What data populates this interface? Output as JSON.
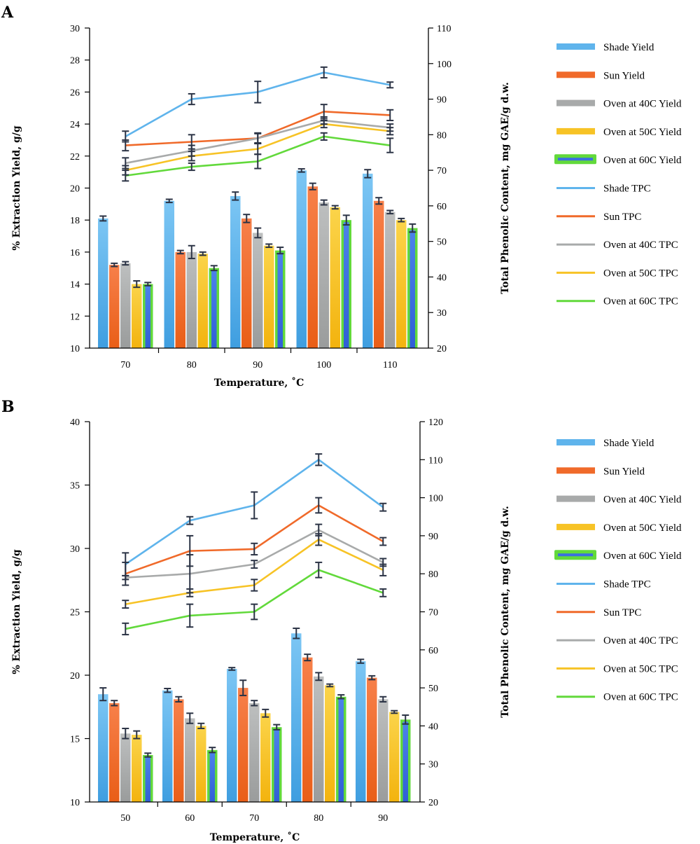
{
  "colors": {
    "shade": "#5fb4ec",
    "sun": "#f06a2a",
    "oven40": "#a8aaaa",
    "oven50": "#f7c326",
    "oven60_outline": "#62d93b",
    "oven60_fill": "#3b6fe0",
    "error_bar": "#2b3345"
  },
  "chart_data": [
    {
      "panel": "A",
      "type": "bar",
      "xlabel": "Temperature, ˚C",
      "ylabel": "% Extraction Yield, g/g",
      "y2label": "Total Phenolic Content, mg GAE/g d.w.",
      "categories": [
        "70",
        "80",
        "90",
        "100",
        "110"
      ],
      "ylim": [
        10,
        30
      ],
      "yticks": [
        10,
        12,
        14,
        16,
        18,
        20,
        22,
        24,
        26,
        28,
        30
      ],
      "y2lim": [
        20,
        110
      ],
      "y2ticks": [
        20,
        30,
        40,
        50,
        60,
        70,
        80,
        90,
        100,
        110
      ],
      "legend_position": "right",
      "bar_series": [
        {
          "name": "Shade Yield",
          "values": [
            18.1,
            19.2,
            19.5,
            21.1,
            20.9
          ],
          "errors": [
            0.15,
            0.1,
            0.25,
            0.1,
            0.25
          ]
        },
        {
          "name": "Sun Yield",
          "values": [
            15.2,
            16.0,
            18.1,
            20.1,
            19.2
          ],
          "errors": [
            0.1,
            0.1,
            0.25,
            0.2,
            0.2
          ]
        },
        {
          "name": "Oven at 40C Yield",
          "values": [
            15.3,
            16.0,
            17.2,
            19.1,
            18.5
          ],
          "errors": [
            0.1,
            0.4,
            0.3,
            0.15,
            0.1
          ]
        },
        {
          "name": "Oven at 50C Yield",
          "values": [
            14.0,
            15.9,
            16.4,
            18.8,
            18.0
          ],
          "errors": [
            0.2,
            0.1,
            0.1,
            0.1,
            0.1
          ]
        },
        {
          "name": "Oven at 60C Yield",
          "values": [
            14.0,
            15.0,
            16.1,
            18.0,
            17.5
          ],
          "errors": [
            0.1,
            0.15,
            0.2,
            0.3,
            0.25
          ]
        }
      ],
      "line_series": [
        {
          "name": "Shade TPC",
          "values": [
            79.5,
            90,
            92,
            97.5,
            94
          ],
          "errors": [
            1.5,
            1.5,
            3,
            1.5,
            0.8
          ]
        },
        {
          "name": "Sun TPC",
          "values": [
            77,
            78,
            79,
            86.5,
            85.5
          ],
          "errors": [
            1.5,
            2,
            1.3,
            2,
            1.5
          ]
        },
        {
          "name": "Oven at 40C TPC",
          "values": [
            72,
            75.5,
            79,
            84,
            82
          ],
          "errors": [
            1.5,
            1.5,
            1.5,
            1,
            1
          ]
        },
        {
          "name": "Oven at 50C TPC",
          "values": [
            70,
            74,
            76,
            83,
            81
          ],
          "errors": [
            1.3,
            1.3,
            1.5,
            1,
            1
          ]
        },
        {
          "name": "Oven at 60C TPC",
          "values": [
            68.5,
            71,
            72.5,
            79.5,
            77
          ],
          "errors": [
            1.5,
            1,
            2,
            1,
            2
          ]
        }
      ]
    },
    {
      "panel": "B",
      "type": "bar",
      "xlabel": "Temperature, ˚C",
      "ylabel": "% Extraction Yield, g/g",
      "y2label": "Total Phenolic Content, mg GAE/g d.w.",
      "categories": [
        "50",
        "60",
        "70",
        "80",
        "90"
      ],
      "ylim": [
        10,
        40
      ],
      "yticks": [
        10,
        15,
        20,
        25,
        30,
        35,
        40
      ],
      "y2lim": [
        20,
        120
      ],
      "y2ticks": [
        20,
        30,
        40,
        50,
        60,
        70,
        80,
        90,
        100,
        110,
        120
      ],
      "legend_position": "right",
      "bar_series": [
        {
          "name": "Shade Yield",
          "values": [
            18.5,
            18.8,
            20.5,
            23.3,
            21.1
          ],
          "errors": [
            0.5,
            0.15,
            0.1,
            0.4,
            0.15
          ]
        },
        {
          "name": "Sun Yield",
          "values": [
            17.8,
            18.1,
            19.0,
            21.4,
            19.8
          ],
          "errors": [
            0.2,
            0.2,
            0.6,
            0.25,
            0.15
          ]
        },
        {
          "name": "Oven at 40C Yield",
          "values": [
            15.4,
            16.6,
            17.8,
            19.9,
            18.1
          ],
          "errors": [
            0.4,
            0.4,
            0.2,
            0.3,
            0.2
          ]
        },
        {
          "name": "Oven at 50C Yield",
          "values": [
            15.3,
            16.0,
            17.0,
            19.2,
            17.1
          ],
          "errors": [
            0.3,
            0.2,
            0.3,
            0.1,
            0.1
          ]
        },
        {
          "name": "Oven at 60C Yield",
          "values": [
            13.7,
            14.1,
            15.9,
            18.3,
            16.5
          ],
          "errors": [
            0.15,
            0.2,
            0.2,
            0.15,
            0.35
          ]
        }
      ],
      "line_series": [
        {
          "name": "Shade TPC",
          "values": [
            82.5,
            94,
            98,
            110,
            97.5
          ],
          "errors": [
            3,
            1,
            3.5,
            1.5,
            1
          ]
        },
        {
          "name": "Sun TPC",
          "values": [
            80,
            86,
            86.5,
            98,
            88.5
          ],
          "errors": [
            3,
            4,
            1.5,
            2,
            1
          ]
        },
        {
          "name": "Oven at 40C TPC",
          "values": [
            79,
            80,
            82.5,
            91.5,
            83
          ],
          "errors": [
            0.5,
            5,
            1,
            1.5,
            1
          ]
        },
        {
          "name": "Oven at 50C TPC",
          "values": [
            72,
            75,
            77,
            89,
            81
          ],
          "errors": [
            1,
            1,
            1.5,
            1.5,
            1.5
          ]
        },
        {
          "name": "Oven at 60C TPC",
          "values": [
            65.5,
            69,
            70,
            81,
            75
          ],
          "errors": [
            1.5,
            3,
            2,
            2,
            1
          ]
        }
      ]
    }
  ]
}
